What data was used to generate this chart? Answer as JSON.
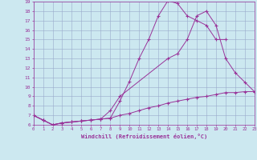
{
  "xlabel": "Windchill (Refroidissement éolien,°C)",
  "xlim": [
    0,
    23
  ],
  "ylim": [
    6,
    19
  ],
  "xticks": [
    0,
    1,
    2,
    3,
    4,
    5,
    6,
    7,
    8,
    9,
    10,
    11,
    12,
    13,
    14,
    15,
    16,
    17,
    18,
    19,
    20,
    21,
    22,
    23
  ],
  "yticks": [
    6,
    7,
    8,
    9,
    10,
    11,
    12,
    13,
    14,
    15,
    16,
    17,
    18,
    19
  ],
  "bg_color": "#cce8f0",
  "line_color": "#993399",
  "grid_color": "#99aacc",
  "line1_x": [
    0,
    1,
    2,
    3,
    4,
    5,
    6,
    7,
    8,
    9,
    10,
    11,
    12,
    13,
    14,
    15,
    16,
    17,
    18,
    19,
    20
  ],
  "line1_y": [
    7.0,
    6.5,
    6.0,
    6.2,
    6.3,
    6.4,
    6.5,
    6.6,
    6.7,
    8.5,
    10.6,
    13.0,
    15.0,
    17.5,
    19.1,
    18.8,
    17.5,
    17.0,
    16.5,
    15.0,
    15.0
  ],
  "line2_x": [
    0,
    1,
    2,
    3,
    4,
    5,
    6,
    7,
    8,
    9,
    14,
    15,
    16,
    17,
    18,
    19,
    20,
    21,
    22,
    23
  ],
  "line2_y": [
    7.0,
    6.5,
    6.0,
    6.2,
    6.3,
    6.4,
    6.5,
    6.6,
    7.5,
    9.0,
    13.0,
    13.5,
    15.0,
    17.5,
    18.0,
    16.5,
    13.0,
    11.5,
    10.5,
    9.5
  ],
  "line3_x": [
    0,
    1,
    2,
    3,
    4,
    5,
    6,
    7,
    8,
    9,
    10,
    11,
    12,
    13,
    14,
    15,
    16,
    17,
    18,
    19,
    20,
    21,
    22,
    23
  ],
  "line3_y": [
    7.0,
    6.5,
    6.0,
    6.2,
    6.3,
    6.4,
    6.5,
    6.6,
    6.7,
    7.0,
    7.2,
    7.5,
    7.8,
    8.0,
    8.3,
    8.5,
    8.7,
    8.9,
    9.0,
    9.2,
    9.4,
    9.4,
    9.5,
    9.5
  ]
}
